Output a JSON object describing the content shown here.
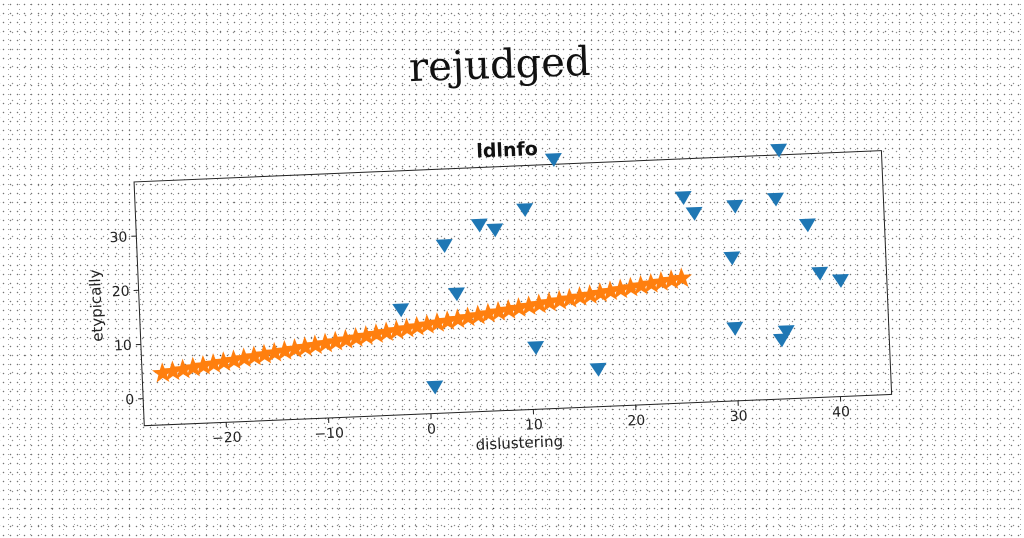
{
  "suptitle": "rejudged",
  "chart_data": {
    "type": "scatter",
    "title": "ldlnfo",
    "xlabel": "dislustering",
    "ylabel": "etypically",
    "xlim": [
      -28,
      45
    ],
    "ylim": [
      -5,
      40
    ],
    "xticks": [
      -20,
      -10,
      0,
      10,
      20,
      30,
      40
    ],
    "yticks": [
      0,
      10,
      20,
      30
    ],
    "xtick_labels": [
      "−20",
      "−10",
      "0",
      "10",
      "20",
      "30",
      "40"
    ],
    "ytick_labels": [
      "0",
      "10",
      "20",
      "30"
    ],
    "grid": false,
    "series": [
      {
        "marker": "triangle-down",
        "color": "#1f77b4",
        "points": [
          [
            0.5,
            0
          ],
          [
            13,
            41
          ],
          [
            35,
            41
          ],
          [
            5.5,
            29.5
          ],
          [
            7,
            28.5
          ],
          [
            2,
            26
          ],
          [
            10,
            32
          ],
          [
            25.5,
            33
          ],
          [
            26.5,
            30
          ],
          [
            30.5,
            31
          ],
          [
            34.5,
            32
          ],
          [
            37.5,
            27
          ],
          [
            30,
            21.5
          ],
          [
            38.5,
            18
          ],
          [
            40.5,
            16.5
          ],
          [
            -2.5,
            14.5
          ],
          [
            3,
            17
          ],
          [
            10.5,
            6.5
          ],
          [
            16.5,
            2
          ],
          [
            30,
            8.5
          ],
          [
            35,
            7.5
          ],
          [
            34.5,
            6
          ]
        ]
      },
      {
        "marker": "star",
        "color": "#ff7f0e",
        "x_start": -26,
        "x_end": 25,
        "count": 52,
        "y_start": 4.5,
        "y_end": 18
      }
    ]
  }
}
